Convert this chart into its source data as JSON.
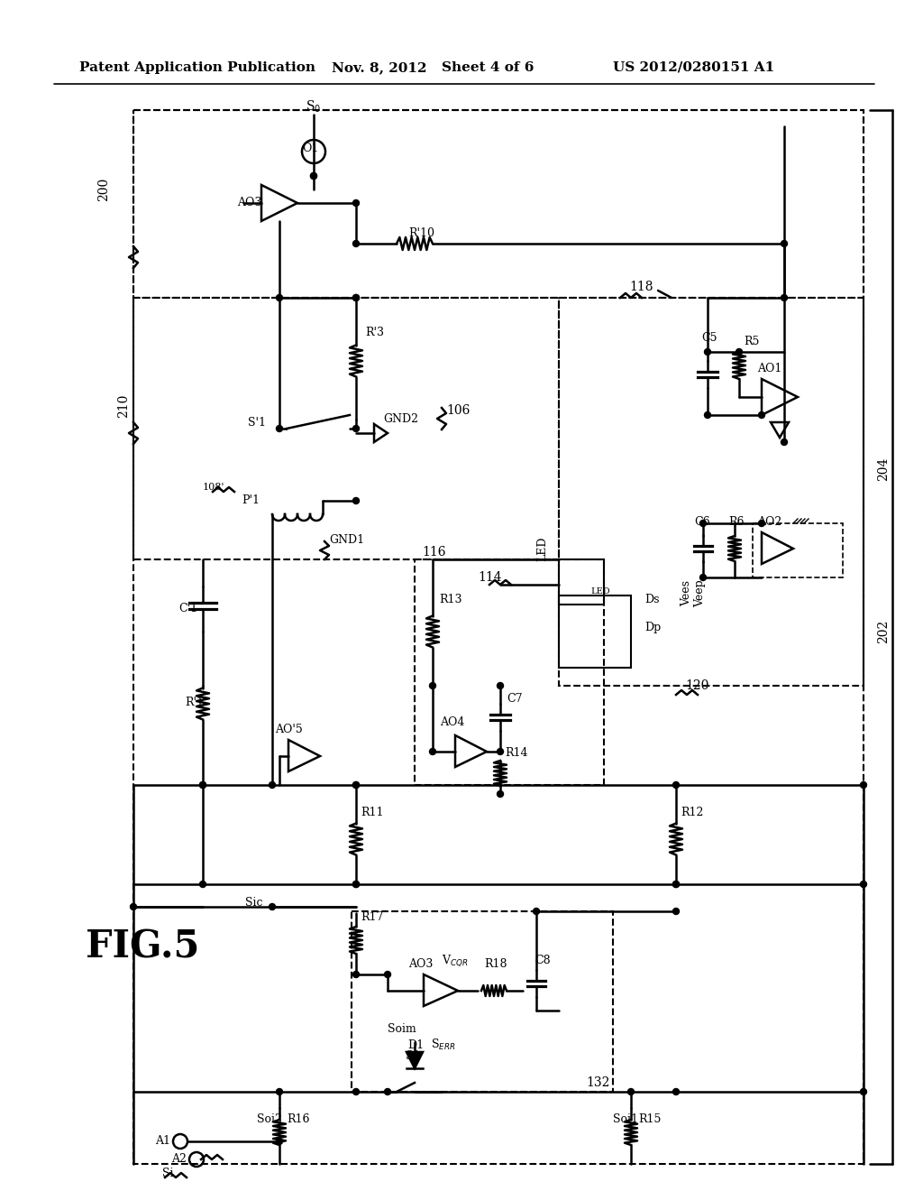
{
  "bg_color": "#ffffff",
  "header_text": "Patent Application Publication",
  "header_date": "Nov. 8, 2012",
  "header_sheet": "Sheet 4 of 6",
  "header_patent": "US 2012/0280151 A1",
  "figure_label": "FIG.5"
}
